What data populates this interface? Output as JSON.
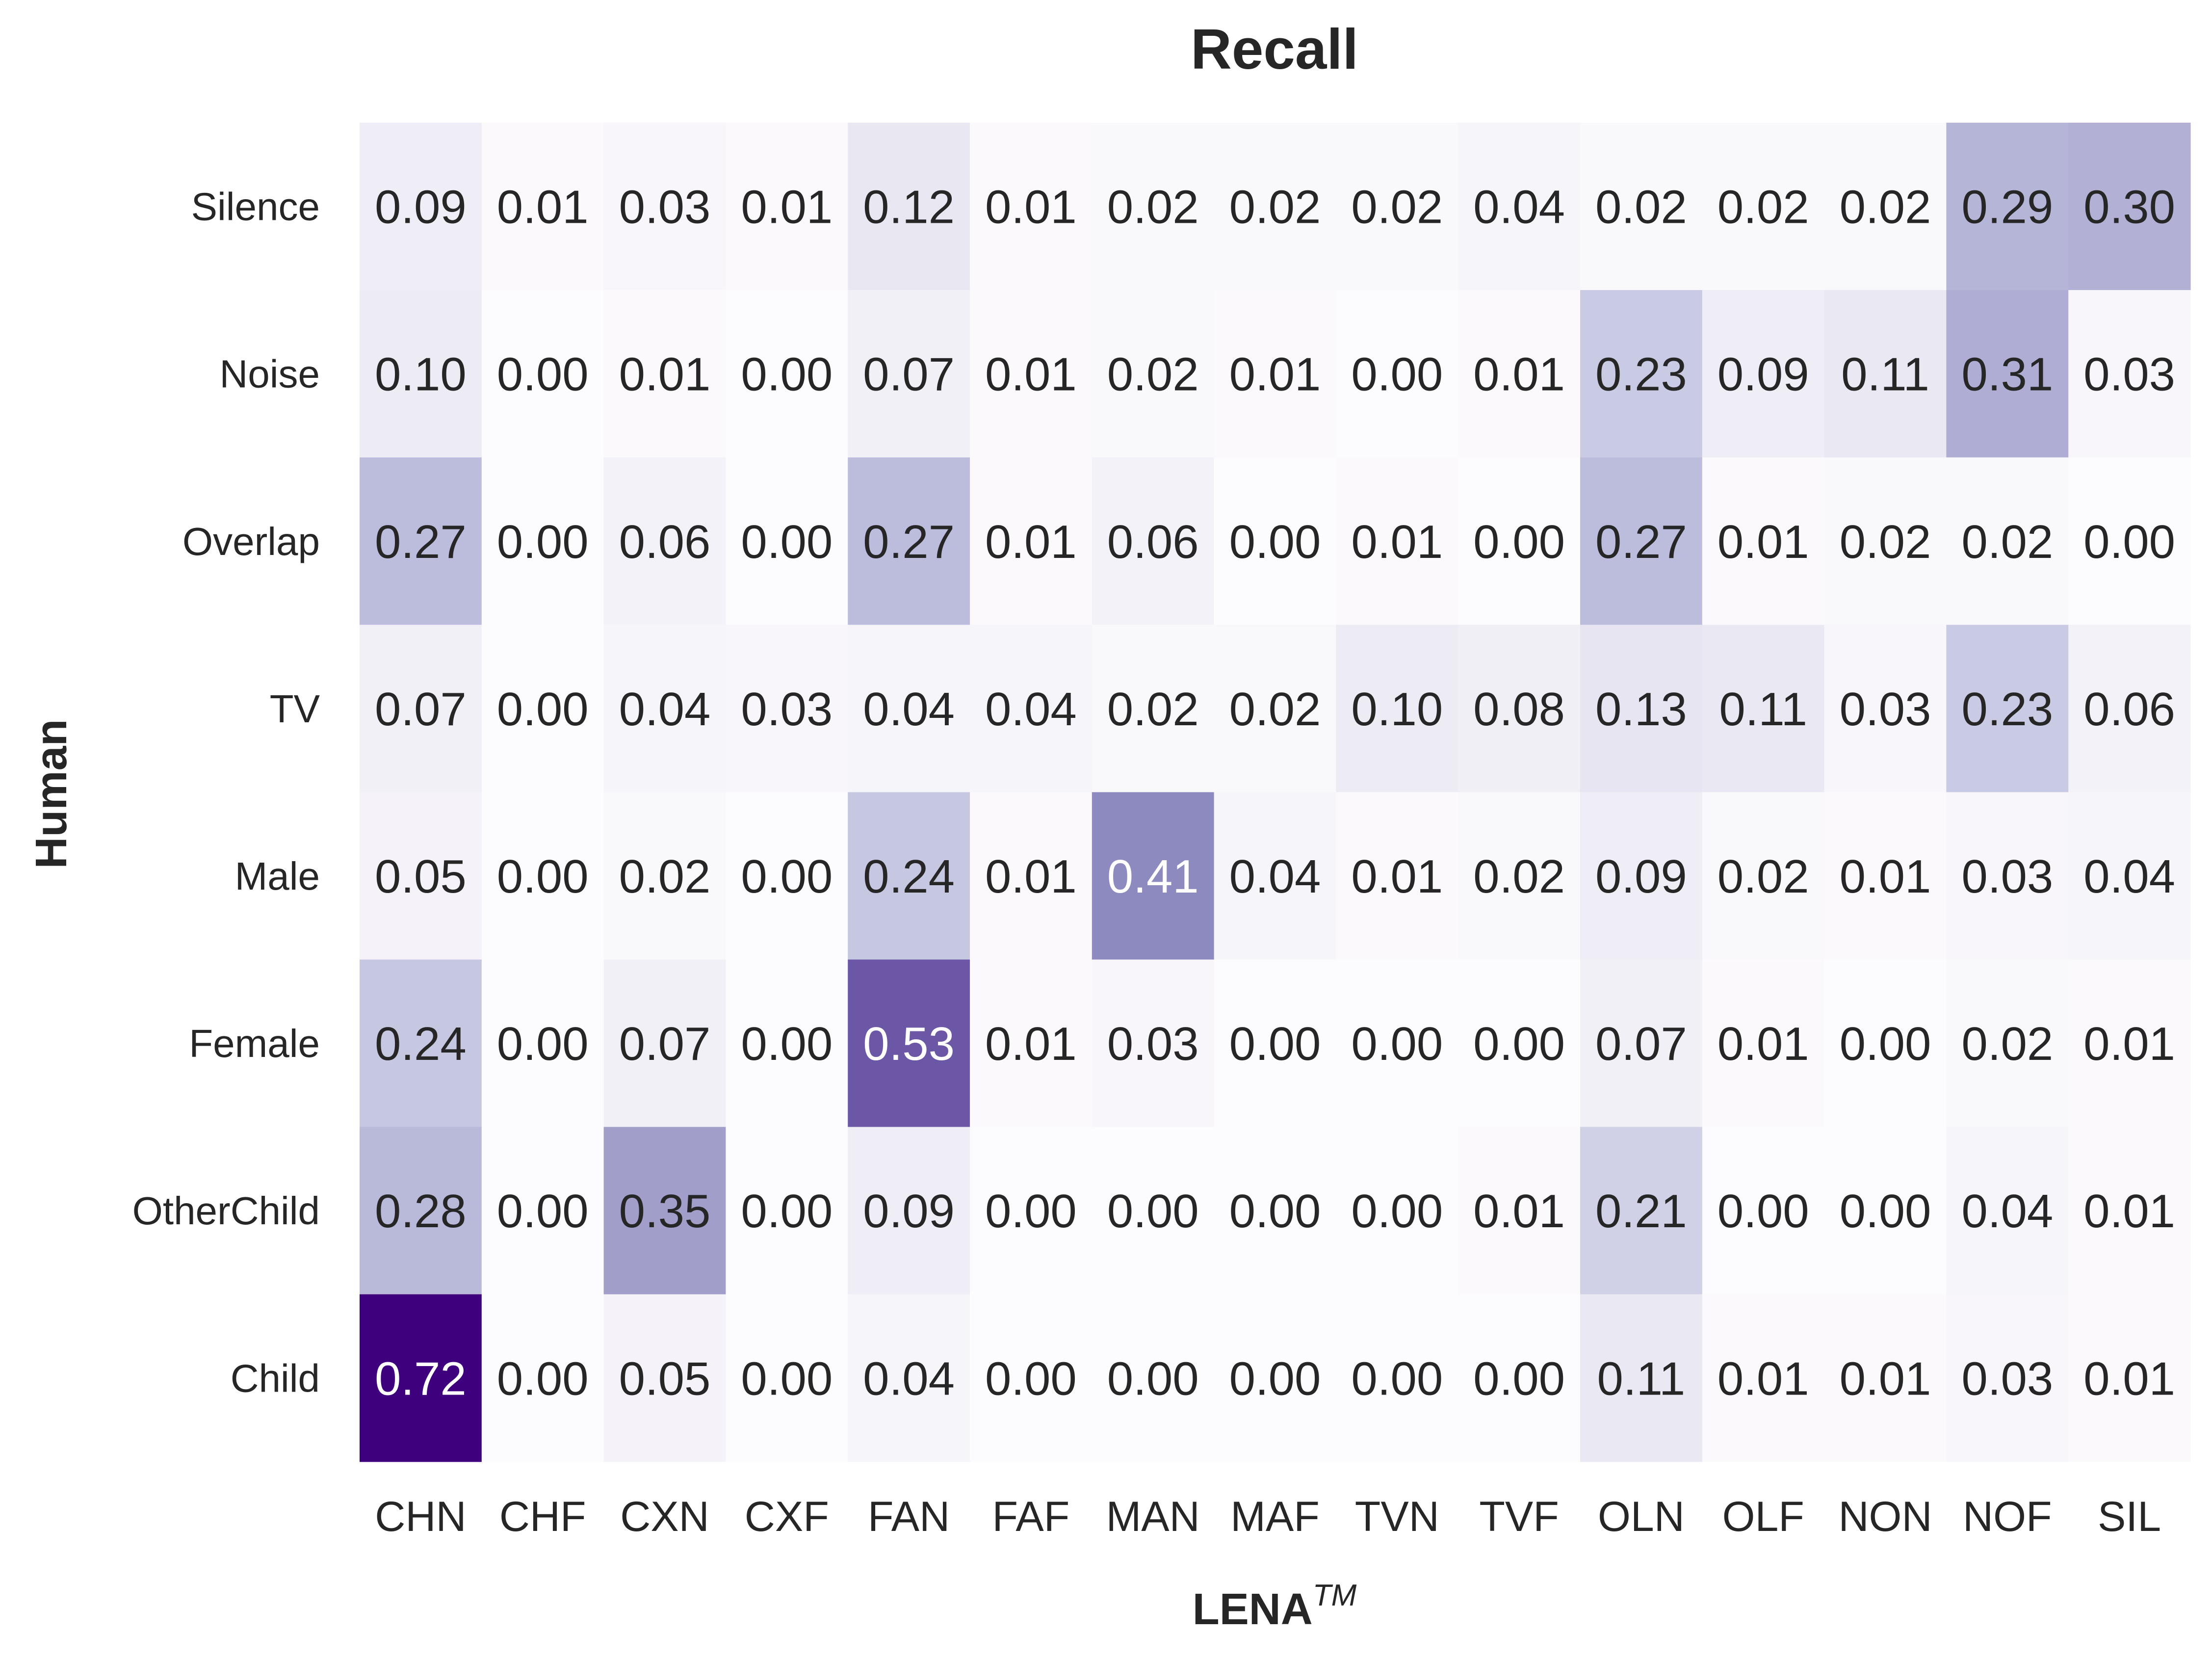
{
  "chart_data": {
    "type": "heatmap",
    "title": "Recall",
    "xlabel": "LENA",
    "xlabel_superscript": "TM",
    "ylabel": "Human",
    "x_categories": [
      "CHN",
      "CHF",
      "CXN",
      "CXF",
      "FAN",
      "FAF",
      "MAN",
      "MAF",
      "TVN",
      "TVF",
      "OLN",
      "OLF",
      "NON",
      "NOF",
      "SIL"
    ],
    "y_categories": [
      "Silence",
      "Noise",
      "Overlap",
      "TV",
      "Male",
      "Female",
      "OtherChild",
      "Child"
    ],
    "values": [
      [
        0.09,
        0.01,
        0.03,
        0.01,
        0.12,
        0.01,
        0.02,
        0.02,
        0.02,
        0.04,
        0.02,
        0.02,
        0.02,
        0.29,
        0.3
      ],
      [
        0.1,
        0.0,
        0.01,
        0.0,
        0.07,
        0.01,
        0.02,
        0.01,
        0.0,
        0.01,
        0.23,
        0.09,
        0.11,
        0.31,
        0.03
      ],
      [
        0.27,
        0.0,
        0.06,
        0.0,
        0.27,
        0.01,
        0.06,
        0.0,
        0.01,
        0.0,
        0.27,
        0.01,
        0.02,
        0.02,
        0.0
      ],
      [
        0.07,
        0.0,
        0.04,
        0.03,
        0.04,
        0.04,
        0.02,
        0.02,
        0.1,
        0.08,
        0.13,
        0.11,
        0.03,
        0.23,
        0.06
      ],
      [
        0.05,
        0.0,
        0.02,
        0.0,
        0.24,
        0.01,
        0.41,
        0.04,
        0.01,
        0.02,
        0.09,
        0.02,
        0.01,
        0.03,
        0.04
      ],
      [
        0.24,
        0.0,
        0.07,
        0.0,
        0.53,
        0.01,
        0.03,
        0.0,
        0.0,
        0.0,
        0.07,
        0.01,
        0.0,
        0.02,
        0.01
      ],
      [
        0.28,
        0.0,
        0.35,
        0.0,
        0.09,
        0.0,
        0.0,
        0.0,
        0.0,
        0.01,
        0.21,
        0.0,
        0.0,
        0.04,
        0.01
      ],
      [
        0.72,
        0.0,
        0.05,
        0.0,
        0.04,
        0.0,
        0.0,
        0.0,
        0.0,
        0.0,
        0.11,
        0.01,
        0.01,
        0.03,
        0.01
      ]
    ],
    "colormap": "Purples",
    "vmin": 0.0,
    "vmax": 0.72,
    "value_format": "2 decimals",
    "colorbar": false,
    "grid": false
  }
}
